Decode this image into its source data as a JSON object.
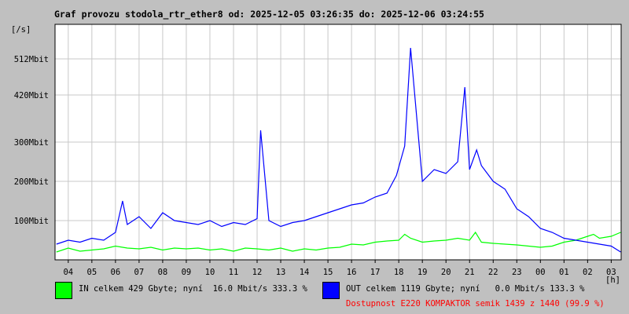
{
  "title": "Graf provozu stodola_rtr_ether8 od: 2025-12-05 03:26:35 do: 2025-12-06 03:24:55",
  "colors": {
    "in": "#00ff00",
    "out": "#0000ff",
    "grid": "#c8c8c8",
    "availability": "#ff0000"
  },
  "legend": {
    "in": "IN celkem 429 Gbyte; nyní  16.0 Mbit/s 333.3 %",
    "out": "OUT celkem 1119 Gbyte; nyní   0.0 Mbit/s 133.3 %",
    "availability": "Dostupnost E220 KOMPAKTOR semik 1439 z 1440 (99.9 %)"
  },
  "chart_data": {
    "type": "line",
    "ylabel": "[/s]",
    "xunit": "[h]",
    "ylim": [
      0,
      600
    ],
    "yticks": [
      {
        "value": 100,
        "label": "100Mbit"
      },
      {
        "value": 200,
        "label": "200Mbit"
      },
      {
        "value": 300,
        "label": "300Mbit"
      },
      {
        "value": 420,
        "label": "420Mbit"
      },
      {
        "value": 512,
        "label": "512Mbit"
      }
    ],
    "xticks": [
      {
        "hour": 4,
        "label": "04"
      },
      {
        "hour": 5,
        "label": "05"
      },
      {
        "hour": 6,
        "label": "06"
      },
      {
        "hour": 7,
        "label": "07"
      },
      {
        "hour": 8,
        "label": "08"
      },
      {
        "hour": 9,
        "label": "09"
      },
      {
        "hour": 10,
        "label": "10"
      },
      {
        "hour": 11,
        "label": "11"
      },
      {
        "hour": 12,
        "label": "12"
      },
      {
        "hour": 13,
        "label": "13"
      },
      {
        "hour": 14,
        "label": "14"
      },
      {
        "hour": 15,
        "label": "15"
      },
      {
        "hour": 16,
        "label": "16"
      },
      {
        "hour": 17,
        "label": "17"
      },
      {
        "hour": 18,
        "label": "18"
      },
      {
        "hour": 19,
        "label": "19"
      },
      {
        "hour": 20,
        "label": "20"
      },
      {
        "hour": 21,
        "label": "21"
      },
      {
        "hour": 22,
        "label": "22"
      },
      {
        "hour": 23,
        "label": "23"
      },
      {
        "hour": 24,
        "label": "00"
      },
      {
        "hour": 25,
        "label": "01"
      },
      {
        "hour": 26,
        "label": "02"
      },
      {
        "hour": 27,
        "label": "03"
      }
    ],
    "xlim": [
      3.44,
      27.42
    ],
    "grid": true,
    "series": [
      {
        "name": "IN",
        "color": "#00ff00",
        "x": [
          3.5,
          4,
          4.5,
          5,
          5.5,
          6,
          6.5,
          7,
          7.5,
          8,
          8.5,
          9,
          9.5,
          10,
          10.5,
          11,
          11.5,
          12,
          12.5,
          13,
          13.5,
          14,
          14.5,
          15,
          15.5,
          16,
          16.5,
          17,
          17.5,
          18,
          18.25,
          18.5,
          19,
          19.5,
          20,
          20.5,
          21,
          21.25,
          21.5,
          22,
          22.5,
          23,
          23.5,
          24,
          24.5,
          25,
          25.5,
          26,
          26.25,
          26.5,
          27,
          27.4
        ],
        "y": [
          20,
          30,
          22,
          25,
          28,
          35,
          30,
          28,
          32,
          25,
          30,
          28,
          30,
          25,
          28,
          22,
          30,
          28,
          25,
          30,
          22,
          28,
          25,
          30,
          32,
          40,
          38,
          45,
          48,
          50,
          65,
          55,
          45,
          48,
          50,
          55,
          50,
          70,
          45,
          42,
          40,
          38,
          35,
          32,
          35,
          45,
          50,
          60,
          65,
          55,
          60,
          70
        ]
      },
      {
        "name": "OUT",
        "color": "#0000ff",
        "x": [
          3.5,
          4,
          4.5,
          5,
          5.5,
          6,
          6.3,
          6.5,
          7,
          7.5,
          8,
          8.5,
          9,
          9.5,
          10,
          10.5,
          11,
          11.5,
          12,
          12.15,
          12.5,
          13,
          13.5,
          14,
          14.5,
          15,
          15.5,
          16,
          16.5,
          17,
          17.5,
          17.9,
          18.25,
          18.5,
          19,
          19.5,
          20,
          20.5,
          20.8,
          21,
          21.3,
          21.5,
          22,
          22.5,
          23,
          23.5,
          24,
          24.5,
          25,
          25.5,
          26,
          26.5,
          27,
          27.4
        ],
        "y": [
          40,
          50,
          45,
          55,
          50,
          70,
          150,
          90,
          110,
          80,
          120,
          100,
          95,
          90,
          100,
          85,
          95,
          90,
          105,
          330,
          100,
          85,
          95,
          100,
          110,
          120,
          130,
          140,
          145,
          160,
          170,
          215,
          290,
          540,
          200,
          230,
          220,
          250,
          440,
          230,
          280,
          240,
          200,
          180,
          130,
          110,
          80,
          70,
          55,
          50,
          45,
          40,
          35,
          20
        ]
      }
    ]
  }
}
